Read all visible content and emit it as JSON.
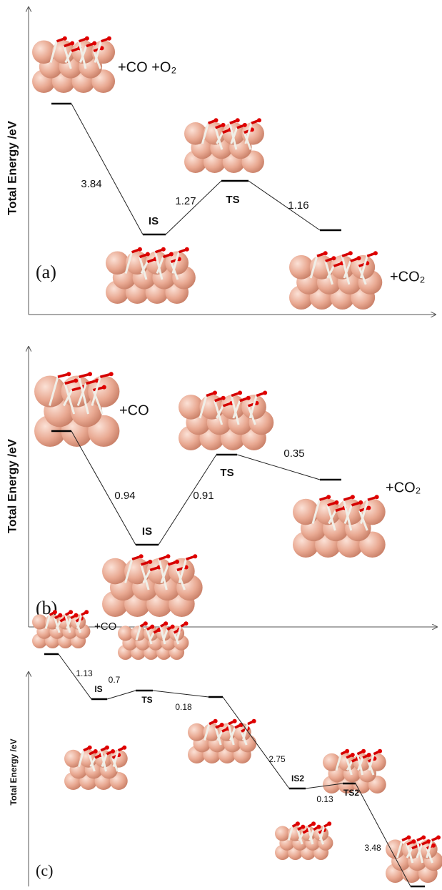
{
  "panels": [
    {
      "label": "(a)",
      "y_axis_label": "Total Energy /eV",
      "species": [
        "+CO +O₂",
        "+CO₂"
      ],
      "state_labels": [
        "IS",
        "TS"
      ],
      "barriers": [
        3.84,
        1.27,
        1.16
      ]
    },
    {
      "label": "(b)",
      "y_axis_label": "Total Energy /eV",
      "species": [
        "+CO",
        "+CO₂"
      ],
      "state_labels": [
        "IS",
        "TS"
      ],
      "barriers": [
        0.94,
        0.91,
        0.35
      ]
    },
    {
      "label": "(c)",
      "y_axis_label": "Total Energy /eV",
      "species": [
        "+CO"
      ],
      "state_labels": [
        "IS",
        "TS",
        "IS2",
        "TS2"
      ],
      "barriers": [
        1.13,
        0.7,
        0.18,
        2.75,
        0.13,
        3.48
      ]
    }
  ]
}
